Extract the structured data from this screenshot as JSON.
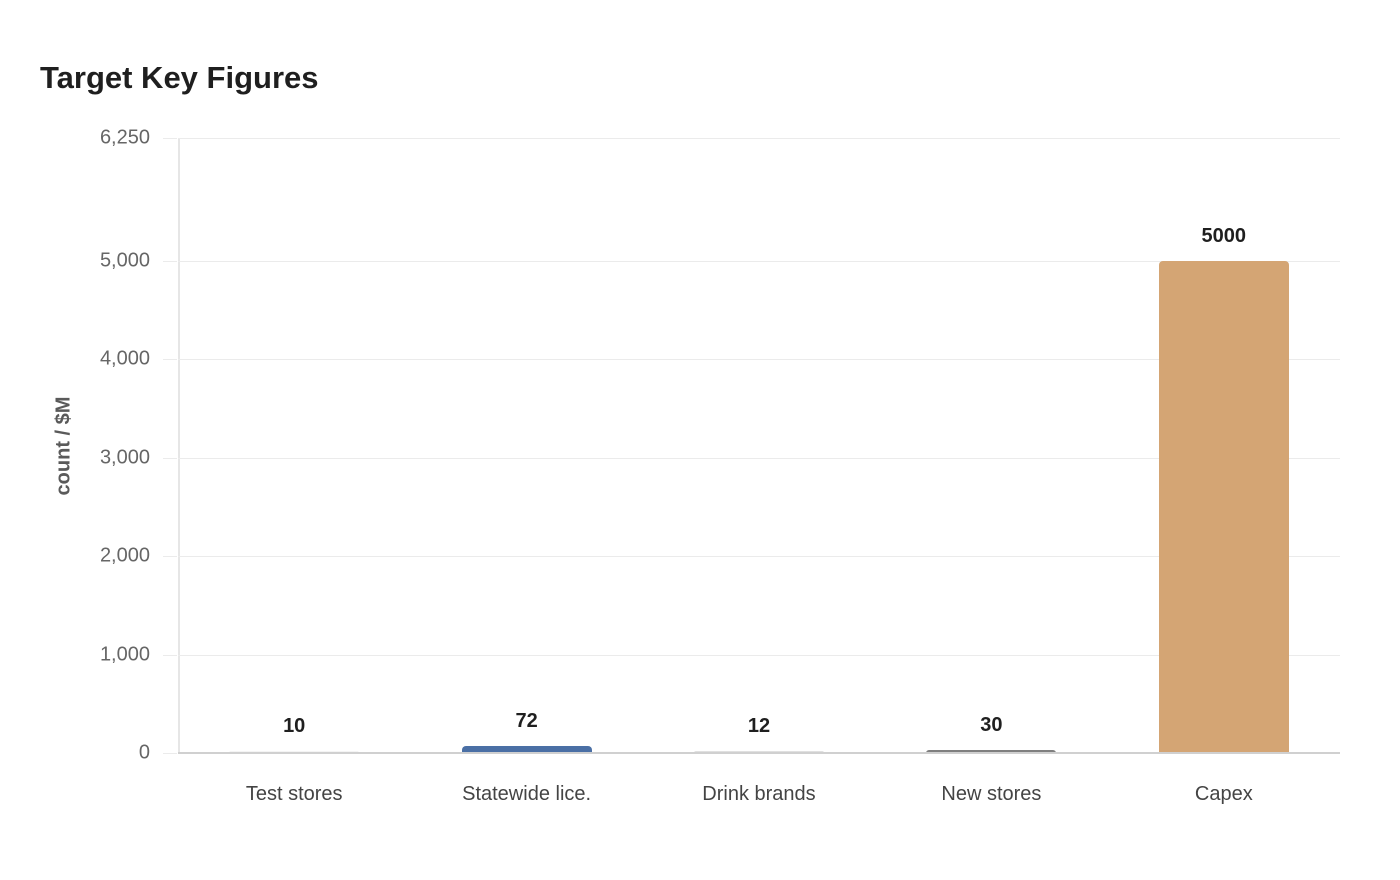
{
  "chart_data": {
    "type": "bar",
    "title": "Target Key Figures",
    "xlabel": "",
    "ylabel": "count / $M",
    "categories": [
      "Test stores",
      "Statewide lice.",
      "Drink brands",
      "New stores",
      "Capex"
    ],
    "values": [
      10,
      72,
      12,
      30,
      5000
    ],
    "value_labels": [
      "10",
      "72",
      "12",
      "30",
      "5000"
    ],
    "colors": [
      "#f4f4f4",
      "#4a6fa5",
      "#e0e0e0",
      "#7f7f7f",
      "#d4a574"
    ],
    "ylim": [
      0,
      6250
    ],
    "yticks": [
      0,
      1000,
      2000,
      3000,
      4000,
      5000,
      6250
    ],
    "ytick_labels": [
      "0",
      "1,000",
      "2,000",
      "3,000",
      "4,000",
      "5,000",
      "6,250"
    ],
    "grid": true,
    "legend": null
  }
}
